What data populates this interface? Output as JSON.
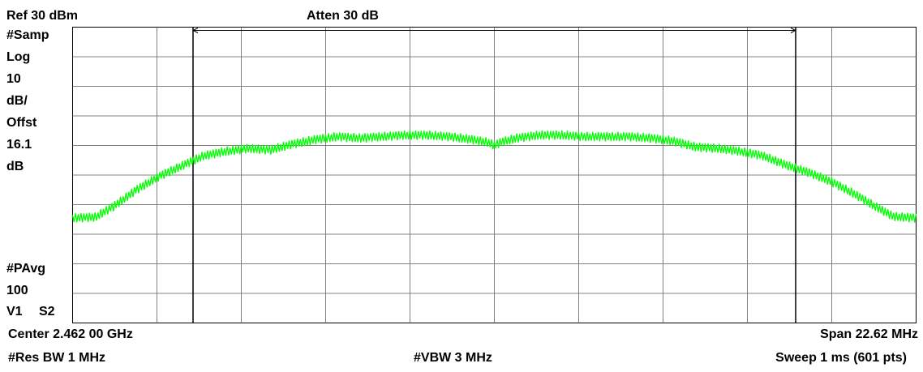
{
  "header": {
    "ref_level": "Ref 30 dBm",
    "attenuation": "Atten 30 dB"
  },
  "side_panel": {
    "detector": "#Samp",
    "scale_type": "Log",
    "scale_value": "10",
    "scale_unit": "dB/",
    "offset_label": "Offst",
    "offset_value": "16.1",
    "offset_unit": "dB",
    "average_label": "#PAvg",
    "average_count": "100",
    "trace_v": "V1",
    "trace_s": "S2"
  },
  "footer": {
    "center": "Center 2.462 00 GHz",
    "span": "Span 22.62 MHz",
    "rbw": "#Res BW 1 MHz",
    "vbw": "#VBW 3 MHz",
    "sweep": "Sweep 1 ms (601 pts)"
  },
  "colors": {
    "trace": "#00ff00",
    "grid": "#808080",
    "marker_line": "#000000"
  },
  "chart_data": {
    "type": "line",
    "xlabel": "",
    "ylabel": "",
    "x_unit": "MHz offset from center",
    "ylim": [
      -70,
      30
    ],
    "xlim": [
      -11.31,
      11.31
    ],
    "grid": true,
    "divisions": {
      "x": 10,
      "y": 10
    },
    "marker_lines_x": [
      -8.08,
      8.08
    ],
    "series": [
      {
        "x": [
          -11.31,
          -10.7,
          -10.2,
          -9.6,
          -9.0,
          -8.4,
          -7.8,
          -7.2,
          -6.6,
          -6.0,
          -5.4,
          -4.8,
          -4.2,
          -3.6,
          -3.0,
          -2.4,
          -1.8,
          -1.2,
          -0.6,
          -0.15,
          0.0,
          0.15,
          0.6,
          1.2,
          1.8,
          2.4,
          3.0,
          3.6,
          4.2,
          4.8,
          5.4,
          6.0,
          6.6,
          7.2,
          7.8,
          8.4,
          9.0,
          9.6,
          10.2,
          10.7,
          11.31
        ],
        "y": [
          -34.5,
          -34.2,
          -30.5,
          -25.0,
          -20.5,
          -17.0,
          -13.5,
          -12.0,
          -11.0,
          -11.5,
          -9.5,
          -8.0,
          -7.0,
          -7.5,
          -7.0,
          -6.5,
          -6.5,
          -7.0,
          -8.0,
          -9.0,
          -10.0,
          -9.0,
          -7.5,
          -6.5,
          -6.5,
          -7.0,
          -7.0,
          -7.0,
          -7.5,
          -8.5,
          -10.5,
          -11.0,
          -12.0,
          -13.5,
          -16.5,
          -19.0,
          -22.0,
          -26.0,
          -30.5,
          -34.0,
          -34.5
        ]
      }
    ]
  }
}
